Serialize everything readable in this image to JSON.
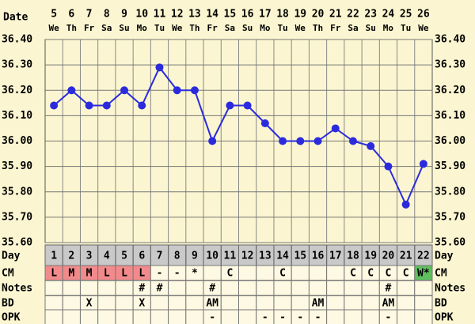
{
  "chart_data": {
    "type": "line",
    "date_label": "Date",
    "dates": [
      5,
      6,
      7,
      8,
      9,
      10,
      11,
      12,
      13,
      14,
      15,
      16,
      17,
      18,
      19,
      20,
      21,
      22,
      23,
      24,
      25,
      26
    ],
    "weekdays": [
      "We",
      "Th",
      "Fr",
      "Sa",
      "Su",
      "Mo",
      "Tu",
      "We",
      "Th",
      "Fr",
      "Sa",
      "Su",
      "Mo",
      "Tu",
      "We",
      "Th",
      "Fr",
      "Sa",
      "Su",
      "Mo",
      "Tu",
      "We"
    ],
    "categories": [
      1,
      2,
      3,
      4,
      5,
      6,
      7,
      8,
      9,
      10,
      11,
      12,
      13,
      14,
      15,
      16,
      17,
      18,
      19,
      20,
      21,
      22
    ],
    "values": [
      36.14,
      36.2,
      36.14,
      36.14,
      36.2,
      36.14,
      36.29,
      36.2,
      36.2,
      36.0,
      36.14,
      36.14,
      36.07,
      36.0,
      36.0,
      36.0,
      36.05,
      36.0,
      35.98,
      35.9,
      35.75,
      35.91
    ],
    "color": "#2b2bdd",
    "ylim": [
      35.6,
      36.4
    ],
    "yticks": [
      {
        "value": 35.6,
        "label": "35.60"
      },
      {
        "value": 35.7,
        "label": "35.70"
      },
      {
        "value": 35.8,
        "label": "35.80"
      },
      {
        "value": 35.9,
        "label": "35.90"
      },
      {
        "value": 36.0,
        "label": "36.00"
      },
      {
        "value": 36.1,
        "label": "36.10"
      },
      {
        "value": 36.2,
        "label": "36.20"
      },
      {
        "value": 36.3,
        "label": "36.30"
      },
      {
        "value": 36.4,
        "label": "36.40"
      }
    ],
    "grid": true,
    "table": {
      "day_label": "Day",
      "rows": [
        {
          "label": "CM",
          "cells": [
            "L",
            "M",
            "M",
            "L",
            "L",
            "L",
            "-",
            "-",
            "*",
            null,
            "C",
            null,
            null,
            "C",
            null,
            null,
            null,
            "C",
            "C",
            "C",
            "C",
            "W*"
          ],
          "colors": [
            "#f28a8c",
            "#f28a8c",
            "#f28a8c",
            "#f28a8c",
            "#f28a8c",
            "#f28a8c",
            null,
            null,
            null,
            null,
            null,
            null,
            null,
            null,
            null,
            null,
            null,
            null,
            null,
            null,
            null,
            "#5fbf5f"
          ]
        },
        {
          "label": "Notes",
          "cells": [
            null,
            null,
            null,
            null,
            null,
            "#",
            "#",
            null,
            null,
            "#",
            null,
            null,
            null,
            null,
            null,
            null,
            null,
            null,
            null,
            "#",
            null,
            null
          ]
        },
        {
          "label": "BD",
          "cells": [
            null,
            null,
            "X",
            null,
            null,
            "X",
            null,
            null,
            null,
            "AM",
            null,
            null,
            null,
            null,
            null,
            "AM",
            null,
            null,
            null,
            "AM",
            null,
            null
          ]
        },
        {
          "label": "OPK",
          "cells": [
            null,
            null,
            null,
            null,
            null,
            null,
            null,
            null,
            null,
            "-",
            null,
            null,
            "-",
            "-",
            "-",
            "-",
            null,
            null,
            null,
            "-",
            null,
            null
          ]
        }
      ]
    }
  }
}
